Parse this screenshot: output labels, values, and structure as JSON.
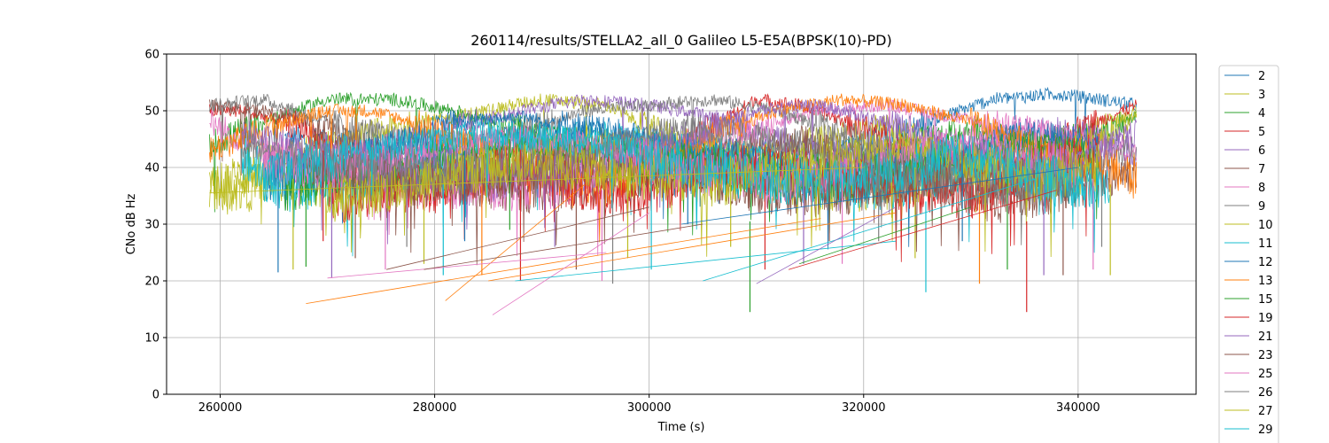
{
  "chart_data": {
    "type": "line",
    "title": "260114/results/STELLA2_all_0 Galileo L5-E5A(BPSK(10)-PD)",
    "xlabel": "Time (s)",
    "ylabel": "CNo dB Hz",
    "xlim": [
      255000,
      351000
    ],
    "ylim": [
      0,
      60
    ],
    "xticks": [
      260000,
      280000,
      300000,
      320000,
      340000
    ],
    "xtick_labels": [
      "260000",
      "280000",
      "300000",
      "320000",
      "340000"
    ],
    "yticks": [
      0,
      10,
      20,
      30,
      40,
      50,
      60
    ],
    "ytick_labels": [
      "0",
      "10",
      "20",
      "30",
      "40",
      "50",
      "60"
    ],
    "grid": true,
    "legend_position": "right, outside plot (clipped at bottom)",
    "series": [
      {
        "name": "2",
        "color": "#1f77b4",
        "x": [
          266000,
          272000,
          280000,
          288000,
          294000,
          300000,
          306000,
          313000,
          320000,
          326000,
          332000,
          338000,
          342000,
          345500
        ],
        "y": [
          45,
          44,
          43,
          45,
          46,
          44,
          43,
          42,
          44,
          48,
          52,
          53,
          52,
          51
        ]
      },
      {
        "name": "3",
        "color": "#bcbd22",
        "x": [
          259000,
          266000,
          274000,
          282000,
          290000,
          296000,
          300000,
          304000,
          310000,
          316000,
          322000,
          328000,
          334000,
          340000,
          345500
        ],
        "y": [
          36,
          42,
          46,
          49,
          52,
          51,
          47,
          44,
          42,
          45,
          47,
          43,
          41,
          45,
          50
        ]
      },
      {
        "name": "4",
        "color": "#2ca02c",
        "x": [
          259000,
          264000,
          270000,
          276000,
          282000,
          288000,
          294000,
          300000,
          306000,
          312000,
          318000,
          324000,
          330000,
          336000,
          342000,
          345500
        ],
        "y": [
          44,
          48,
          52,
          52,
          50,
          47,
          44,
          42,
          40,
          39,
          41,
          44,
          47,
          44,
          46,
          49
        ]
      },
      {
        "name": "5",
        "color": "#d62728",
        "x": [
          259000,
          262000,
          268000,
          274000,
          280000,
          286000,
          292000,
          298000,
          304000,
          310000,
          314000,
          320000,
          326000,
          332000,
          338000,
          345500
        ],
        "y": [
          50,
          50,
          47,
          39,
          36,
          40,
          42,
          38,
          45,
          52,
          51,
          47,
          42,
          38,
          45,
          51
        ]
      },
      {
        "name": "6",
        "color": "#9467bd",
        "x": [
          264000,
          270000,
          276000,
          282000,
          288000,
          294000,
          300000,
          306000,
          312000,
          318000,
          324000,
          330000,
          336000,
          342000,
          345500
        ],
        "y": [
          40,
          42,
          44,
          47,
          50,
          52,
          51,
          49,
          45,
          41,
          39,
          43,
          47,
          45,
          42
        ]
      },
      {
        "name": "7",
        "color": "#8c564b",
        "x": [
          259000,
          264000,
          270000,
          274000,
          278000,
          284000,
          290000,
          296000,
          302000,
          308000,
          314000,
          320000,
          326000,
          332000,
          338000,
          345500
        ],
        "y": [
          51,
          50,
          47,
          43,
          40,
          37,
          36,
          37,
          39,
          43,
          45,
          42,
          38,
          34,
          36,
          40
        ]
      },
      {
        "name": "8",
        "color": "#e377c2",
        "x": [
          259000,
          262000,
          268000,
          274000,
          280000,
          286000,
          292000,
          298000,
          304000,
          310000,
          316000,
          322000,
          328000,
          334000,
          340000,
          345500
        ],
        "y": [
          48,
          45,
          40,
          38,
          37,
          36,
          37,
          40,
          44,
          47,
          50,
          51,
          49,
          47,
          45,
          43
        ]
      },
      {
        "name": "9",
        "color": "#7f7f7f",
        "x": [
          259000,
          264000,
          270000,
          276000,
          282000,
          288000,
          294000,
          300000,
          306000,
          312000,
          318000,
          324000,
          330000,
          336000,
          342000,
          345500
        ],
        "y": [
          51,
          52,
          48,
          45,
          44,
          46,
          50,
          51,
          52,
          50,
          46,
          42,
          40,
          38,
          41,
          44
        ]
      },
      {
        "name": "10",
        "color": "#bcbd22",
        "x": [
          259000,
          262000,
          266000,
          270000,
          276000,
          282000,
          288000,
          294000,
          300000,
          306000,
          312000,
          318000,
          324000,
          330000,
          336000,
          342000,
          345500
        ],
        "y": [
          37,
          36,
          38,
          36,
          37,
          40,
          43,
          45,
          44,
          41,
          38,
          36,
          37,
          40,
          42,
          45,
          49
        ]
      },
      {
        "name": "11",
        "color": "#17becf",
        "x": [
          262000,
          266000,
          272000,
          278000,
          284000,
          290000,
          296000,
          302000,
          308000,
          314000,
          320000,
          326000,
          332000,
          338000,
          342000
        ],
        "y": [
          42,
          36,
          37,
          40,
          43,
          45,
          46,
          44,
          41,
          38,
          36,
          38,
          40,
          37,
          36
        ]
      },
      {
        "name": "12",
        "color": "#1f77b4",
        "x": [
          264000,
          270000,
          276000,
          282000,
          288000,
          294000,
          300000,
          306000,
          312000,
          318000,
          324000,
          330000,
          336000,
          342000
        ],
        "y": [
          38,
          40,
          44,
          48,
          49,
          47,
          45,
          42,
          39,
          37,
          40,
          44,
          46,
          44
        ]
      },
      {
        "name": "13",
        "color": "#ff7f0e",
        "x": [
          259000,
          262000,
          266000,
          270000,
          274000,
          278000,
          282000,
          286000,
          290000,
          296000,
          300000,
          306000,
          312000,
          318000,
          324000,
          330000,
          336000,
          342000,
          345500
        ],
        "y": [
          43,
          45,
          48,
          50,
          50,
          48,
          45,
          42,
          40,
          37,
          40,
          46,
          50,
          52,
          51,
          48,
          44,
          40,
          38
        ]
      },
      {
        "name": "15",
        "color": "#2ca02c",
        "x": [
          266000,
          270000,
          276000,
          282000,
          288000,
          294000,
          300000,
          306000,
          312000,
          318000,
          324000,
          330000,
          336000,
          342000
        ],
        "y": [
          36,
          38,
          40,
          42,
          44,
          43,
          41,
          40,
          38,
          38,
          40,
          43,
          44,
          42
        ]
      },
      {
        "name": "19",
        "color": "#d62728",
        "x": [
          270000,
          276000,
          282000,
          288000,
          294000,
          298000,
          302000,
          306000,
          312000,
          318000,
          324000,
          330000,
          336000,
          342000
        ],
        "y": [
          34,
          36,
          38,
          40,
          36,
          34,
          37,
          40,
          40,
          38,
          36,
          35,
          40,
          42
        ]
      },
      {
        "name": "21",
        "color": "#9467bd",
        "x": [
          262000,
          268000,
          274000,
          280000,
          286000,
          292000,
          298000,
          304000,
          310000,
          316000,
          322000,
          328000,
          334000,
          340000,
          345500
        ],
        "y": [
          46,
          43,
          41,
          40,
          38,
          39,
          42,
          46,
          50,
          51,
          48,
          44,
          40,
          42,
          46
        ]
      },
      {
        "name": "23",
        "color": "#8c564b",
        "x": [
          268000,
          274000,
          280000,
          286000,
          292000,
          298000,
          304000,
          310000,
          316000,
          322000,
          328000,
          334000,
          340000
        ],
        "y": [
          40,
          38,
          37,
          38,
          40,
          41,
          39,
          36,
          35,
          37,
          39,
          38,
          36
        ]
      },
      {
        "name": "25",
        "color": "#e377c2",
        "x": [
          264000,
          270000,
          276000,
          282000,
          288000,
          294000,
          300000,
          306000,
          312000,
          318000,
          324000,
          330000,
          336000,
          340000
        ],
        "y": [
          41,
          40,
          42,
          44,
          45,
          44,
          41,
          39,
          38,
          40,
          43,
          45,
          42,
          39
        ]
      },
      {
        "name": "26",
        "color": "#7f7f7f",
        "x": [
          262000,
          268000,
          274000,
          280000,
          286000,
          292000,
          298000,
          304000,
          310000,
          316000,
          322000,
          328000,
          334000,
          340000
        ],
        "y": [
          44,
          42,
          40,
          39,
          40,
          42,
          45,
          47,
          46,
          43,
          40,
          38,
          37,
          39
        ]
      },
      {
        "name": "27",
        "color": "#bcbd22",
        "x": [
          270000,
          276000,
          282000,
          288000,
          294000,
          300000,
          306000,
          312000,
          318000,
          324000,
          330000,
          336000,
          342000
        ],
        "y": [
          34,
          36,
          39,
          41,
          40,
          38,
          37,
          39,
          42,
          44,
          41,
          38,
          40
        ]
      },
      {
        "name": "29",
        "color": "#17becf",
        "x": [
          264000,
          268000,
          274000,
          280000,
          286000,
          292000,
          298000,
          304000,
          310000,
          316000,
          322000,
          328000,
          334000,
          340000,
          343000
        ],
        "y": [
          38,
          40,
          43,
          45,
          46,
          45,
          43,
          40,
          38,
          37,
          39,
          42,
          40,
          37,
          36
        ]
      }
    ],
    "dropouts": [
      {
        "x": 265400,
        "y": 21.5
      },
      {
        "x": 266800,
        "y": 22
      },
      {
        "x": 268000,
        "y": 22.5
      },
      {
        "x": 269600,
        "y": 27
      },
      {
        "x": 270400,
        "y": 20.5
      },
      {
        "x": 272600,
        "y": 24
      },
      {
        "x": 275400,
        "y": 22
      },
      {
        "x": 277400,
        "y": 26
      },
      {
        "x": 279000,
        "y": 23
      },
      {
        "x": 280800,
        "y": 21
      },
      {
        "x": 282800,
        "y": 27
      },
      {
        "x": 284400,
        "y": 21
      },
      {
        "x": 287000,
        "y": 29
      },
      {
        "x": 288000,
        "y": 20
      },
      {
        "x": 291200,
        "y": 26
      },
      {
        "x": 293200,
        "y": 22
      },
      {
        "x": 295600,
        "y": 20
      },
      {
        "x": 296600,
        "y": 19.5
      },
      {
        "x": 298000,
        "y": 24
      },
      {
        "x": 300200,
        "y": 22
      },
      {
        "x": 303600,
        "y": 30
      },
      {
        "x": 307600,
        "y": 26
      },
      {
        "x": 309400,
        "y": 14.5
      },
      {
        "x": 310800,
        "y": 22
      },
      {
        "x": 314400,
        "y": 23
      },
      {
        "x": 316800,
        "y": 27
      },
      {
        "x": 318000,
        "y": 23
      },
      {
        "x": 321400,
        "y": 27
      },
      {
        "x": 324800,
        "y": 24
      },
      {
        "x": 325800,
        "y": 18
      },
      {
        "x": 329200,
        "y": 27
      },
      {
        "x": 330800,
        "y": 19.5
      },
      {
        "x": 333400,
        "y": 22
      },
      {
        "x": 335200,
        "y": 14.5
      },
      {
        "x": 336800,
        "y": 21
      },
      {
        "x": 338600,
        "y": 21
      },
      {
        "x": 341400,
        "y": 22
      },
      {
        "x": 342200,
        "y": 26
      },
      {
        "x": 343000,
        "y": 21
      }
    ],
    "connectors": [
      {
        "color": "#bcbd22",
        "x": [
          259000,
          320000
        ],
        "y": [
          35.5,
          40
        ]
      },
      {
        "color": "#ff7f0e",
        "x": [
          268000,
          316000
        ],
        "y": [
          16,
          31
        ]
      },
      {
        "color": "#ff7f0e",
        "x": [
          281000,
          294000
        ],
        "y": [
          16.5,
          37
        ]
      },
      {
        "color": "#ff7f0e",
        "x": [
          285000,
          323000
        ],
        "y": [
          20,
          32
        ]
      },
      {
        "color": "#e377c2",
        "x": [
          285400,
          300000
        ],
        "y": [
          14,
          32
        ]
      },
      {
        "color": "#e377c2",
        "x": [
          270000,
          296000
        ],
        "y": [
          20.5,
          25
        ]
      },
      {
        "color": "#17becf",
        "x": [
          287500,
          323000
        ],
        "y": [
          20,
          27
        ]
      },
      {
        "color": "#17becf",
        "x": [
          305000,
          336000
        ],
        "y": [
          20,
          38
        ]
      },
      {
        "color": "#9467bd",
        "x": [
          310000,
          323000
        ],
        "y": [
          19.5,
          33
        ]
      },
      {
        "color": "#8c564b",
        "x": [
          275500,
          300000
        ],
        "y": [
          22,
          33
        ]
      },
      {
        "color": "#8c564b",
        "x": [
          279000,
          305000
        ],
        "y": [
          22,
          30
        ]
      },
      {
        "color": "#2ca02c",
        "x": [
          314000,
          330000
        ],
        "y": [
          23,
          33
        ]
      },
      {
        "color": "#d62728",
        "x": [
          313000,
          338000
        ],
        "y": [
          22,
          36
        ]
      },
      {
        "color": "#1f77b4",
        "x": [
          303000,
          340000
        ],
        "y": [
          30,
          40
        ]
      }
    ]
  }
}
